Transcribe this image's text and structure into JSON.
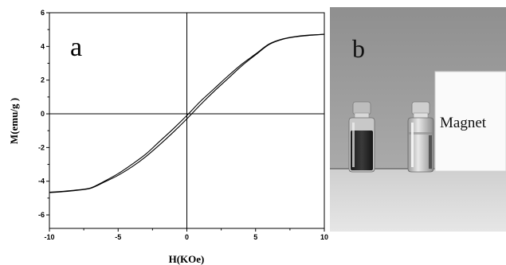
{
  "chart_data": {
    "type": "line",
    "panel_label": "a",
    "xlabel": "H(KOe)",
    "ylabel": "M(emu/g )",
    "xlim": [
      -10,
      10
    ],
    "ylim": [
      -6.8,
      6
    ],
    "x_ticks": [
      -10,
      -5,
      0,
      5,
      10
    ],
    "y_ticks": [
      -6,
      -4,
      -2,
      0,
      2,
      4,
      6
    ],
    "grid": false,
    "series": [
      {
        "x": [
          -10,
          -9,
          -8,
          -7,
          -6,
          -5,
          -4,
          -3,
          -2,
          -1,
          0,
          1,
          2,
          3,
          4,
          5,
          6,
          7,
          8,
          9,
          10
        ],
        "values": [
          -4.65,
          -4.6,
          -4.52,
          -4.4,
          -4.0,
          -3.55,
          -3.0,
          -2.4,
          -1.65,
          -0.9,
          -0.1,
          0.75,
          1.5,
          2.25,
          2.95,
          3.55,
          4.15,
          4.45,
          4.6,
          4.68,
          4.72
        ]
      },
      {
        "x": [
          -10,
          -9,
          -8,
          -7,
          -6,
          -5,
          -4,
          -3,
          -2,
          -1,
          0,
          1,
          2,
          3,
          4,
          5,
          6,
          7,
          8,
          9,
          10
        ],
        "values": [
          -4.68,
          -4.62,
          -4.54,
          -4.42,
          -4.05,
          -3.65,
          -3.15,
          -2.55,
          -1.85,
          -1.1,
          -0.3,
          0.55,
          1.35,
          2.1,
          2.85,
          3.5,
          4.12,
          4.43,
          4.58,
          4.66,
          4.72
        ]
      }
    ]
  },
  "photo": {
    "panel_label": "b",
    "magnet_label": "Magnet"
  }
}
